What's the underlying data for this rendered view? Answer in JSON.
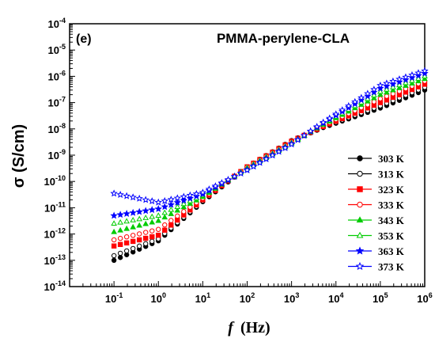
{
  "chart_data": {
    "type": "scatter",
    "panel_label": "(e)",
    "title": "PMMA-perylene-CLA",
    "xlabel_italic": "f",
    "xlabel_unit": "(Hz)",
    "ylabel": "σ (S/cm)",
    "x_scale": "log",
    "y_scale": "log",
    "xlim": [
      0.01,
      1000000
    ],
    "ylim": [
      1e-14,
      0.0001
    ],
    "x_ticks": [
      {
        "value": 0.1,
        "base": "10",
        "exp": "-1"
      },
      {
        "value": 1,
        "base": "10",
        "exp": "0"
      },
      {
        "value": 10,
        "base": "10",
        "exp": "1"
      },
      {
        "value": 100,
        "base": "10",
        "exp": "2"
      },
      {
        "value": 1000,
        "base": "10",
        "exp": "3"
      },
      {
        "value": 10000,
        "base": "10",
        "exp": "4"
      },
      {
        "value": 100000,
        "base": "10",
        "exp": "5"
      },
      {
        "value": 1000000,
        "base": "10",
        "exp": "6"
      }
    ],
    "y_ticks": [
      {
        "value": 1e-14,
        "base": "10",
        "exp": "-14"
      },
      {
        "value": 1e-13,
        "base": "10",
        "exp": "-13"
      },
      {
        "value": 1e-12,
        "base": "10",
        "exp": "-12"
      },
      {
        "value": 1e-11,
        "base": "10",
        "exp": "-11"
      },
      {
        "value": 1e-10,
        "base": "10",
        "exp": "-10"
      },
      {
        "value": 1e-09,
        "base": "10",
        "exp": "-9"
      },
      {
        "value": 1e-08,
        "base": "10",
        "exp": "-8"
      },
      {
        "value": 1e-07,
        "base": "10",
        "exp": "-7"
      },
      {
        "value": 1e-06,
        "base": "10",
        "exp": "-6"
      },
      {
        "value": 1e-05,
        "base": "10",
        "exp": "-5"
      },
      {
        "value": 0.0001,
        "base": "10",
        "exp": "-4"
      }
    ],
    "grid": false,
    "legend_position": "right-middle",
    "series_style": {
      "x_range": [
        0.1,
        1000000
      ],
      "points_per_decade": 7
    },
    "series": [
      {
        "name": "303 K",
        "color": "#000000",
        "marker": "circle",
        "filled": true,
        "anchors": [
          [
            0.1,
            1e-13
          ],
          [
            1,
            5.5e-13
          ],
          [
            10,
            1.7e-11
          ],
          [
            100,
            3.5e-10
          ],
          [
            1000,
            3.5e-09
          ],
          [
            5000,
            1.1e-08
          ],
          [
            100000,
            6.2e-08
          ],
          [
            1000000,
            3e-07
          ]
        ]
      },
      {
        "name": "313 K",
        "color": "#000000",
        "marker": "circle",
        "filled": false,
        "anchors": [
          [
            0.1,
            1.5e-13
          ],
          [
            1,
            6.5e-13
          ],
          [
            10,
            1.8e-11
          ],
          [
            100,
            3.6e-10
          ],
          [
            1000,
            3.6e-09
          ],
          [
            5000,
            1.15e-08
          ],
          [
            100000,
            7.5e-08
          ],
          [
            1000000,
            3.8e-07
          ]
        ]
      },
      {
        "name": "323 K",
        "color": "#ff0000",
        "marker": "square",
        "filled": true,
        "anchors": [
          [
            0.1,
            3.5e-13
          ],
          [
            1,
            9e-13
          ],
          [
            10,
            2e-11
          ],
          [
            100,
            3.6e-10
          ],
          [
            1000,
            3.4e-09
          ],
          [
            5000,
            1.2e-08
          ],
          [
            100000,
            1e-07
          ],
          [
            1000000,
            5e-07
          ]
        ]
      },
      {
        "name": "333 K",
        "color": "#ff0000",
        "marker": "circle",
        "filled": false,
        "anchors": [
          [
            0.1,
            6e-13
          ],
          [
            1,
            1.5e-12
          ],
          [
            10,
            2.3e-11
          ],
          [
            100,
            3.5e-10
          ],
          [
            1000,
            3.2e-09
          ],
          [
            5000,
            1.3e-08
          ],
          [
            100000,
            1.4e-07
          ],
          [
            1000000,
            6.5e-07
          ]
        ]
      },
      {
        "name": "343 K",
        "color": "#00cc00",
        "marker": "triangle",
        "filled": true,
        "anchors": [
          [
            0.1,
            1.2e-12
          ],
          [
            1,
            3.2e-12
          ],
          [
            10,
            2.6e-11
          ],
          [
            100,
            3.3e-10
          ],
          [
            1000,
            3e-09
          ],
          [
            5000,
            1.4e-08
          ],
          [
            100000,
            2e-07
          ],
          [
            1000000,
            8e-07
          ]
        ]
      },
      {
        "name": "353 K",
        "color": "#00cc00",
        "marker": "triangle",
        "filled": false,
        "anchors": [
          [
            0.1,
            2.5e-12
          ],
          [
            1,
            5e-12
          ],
          [
            10,
            3e-11
          ],
          [
            100,
            3.1e-10
          ],
          [
            1000,
            2.8e-09
          ],
          [
            5000,
            1.5e-08
          ],
          [
            100000,
            2.6e-07
          ],
          [
            1000000,
            1e-06
          ]
        ]
      },
      {
        "name": "363 K",
        "color": "#0000ff",
        "marker": "star",
        "filled": true,
        "anchors": [
          [
            0.1,
            5e-12
          ],
          [
            1,
            9e-12
          ],
          [
            10,
            3.3e-11
          ],
          [
            100,
            2.8e-10
          ],
          [
            1000,
            2.7e-09
          ],
          [
            5000,
            1.6e-08
          ],
          [
            100000,
            3.5e-07
          ],
          [
            1000000,
            1.3e-06
          ]
        ]
      },
      {
        "name": "373 K",
        "color": "#0000ff",
        "marker": "star",
        "filled": false,
        "anchors": [
          [
            0.1,
            3.5e-11
          ],
          [
            1,
            1.6e-11
          ],
          [
            10,
            3.8e-11
          ],
          [
            100,
            2.7e-10
          ],
          [
            1000,
            2.6e-09
          ],
          [
            5000,
            1.7e-08
          ],
          [
            100000,
            4.5e-07
          ],
          [
            1000000,
            1.6e-06
          ]
        ]
      }
    ]
  }
}
